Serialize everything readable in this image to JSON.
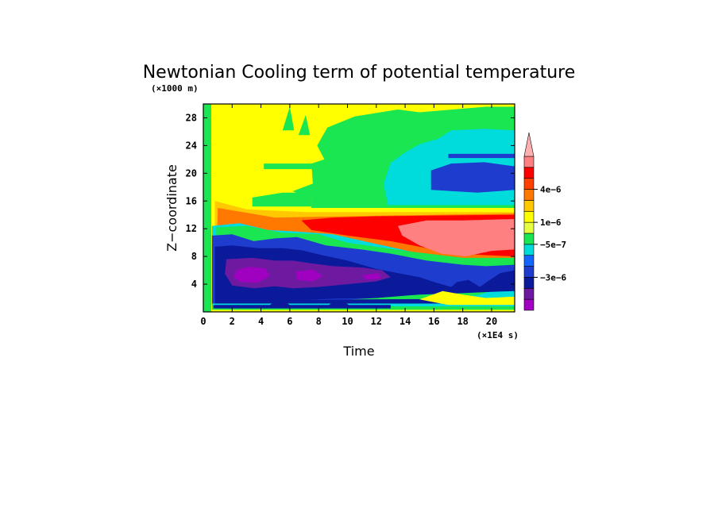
{
  "chart_data": {
    "type": "heatmap",
    "title": "Newtonian Cooling term of potential temperature",
    "xlabel": "Time",
    "ylabel": "Z−coordinate",
    "x_unit": "(×1E4 s)",
    "y_unit": "(×1000 m)",
    "xlim": [
      0,
      21.6
    ],
    "ylim": [
      0,
      30
    ],
    "x_ticks": [
      "0",
      "2",
      "4",
      "6",
      "8",
      "10",
      "12",
      "14",
      "16",
      "18",
      "20"
    ],
    "y_ticks": [
      "4",
      "8",
      "12",
      "16",
      "20",
      "24",
      "28"
    ],
    "colorbar": {
      "colors": [
        "#a000c0",
        "#6e1aa0",
        "#0a1a9a",
        "#1e3ccd",
        "#1464ff",
        "#00dcdc",
        "#19e650",
        "#e6ff40",
        "#ffff00",
        "#ffc800",
        "#ff7800",
        "#ff4000",
        "#ff0000",
        "#ff8080"
      ],
      "labels": [
        "−3e−6",
        "−5e−7",
        "1e−6",
        "4e−6"
      ],
      "label_levels": [
        3,
        6,
        8,
        11
      ]
    },
    "field_levels": [
      {
        "name": "yellow",
        "color": "#ffff00"
      },
      {
        "name": "green",
        "color": "#19e650"
      },
      {
        "name": "cyan",
        "color": "#00dcdc"
      },
      {
        "name": "blue",
        "color": "#1e3ccd"
      },
      {
        "name": "darkblue",
        "color": "#0a1a9a"
      },
      {
        "name": "purple",
        "color": "#6e1aa0"
      },
      {
        "name": "magenta",
        "color": "#a000c0"
      },
      {
        "name": "orange",
        "color": "#ffc800"
      },
      {
        "name": "darkorange",
        "color": "#ff7800"
      },
      {
        "name": "red",
        "color": "#ff0000"
      },
      {
        "name": "pink",
        "color": "#ff8080"
      }
    ]
  }
}
